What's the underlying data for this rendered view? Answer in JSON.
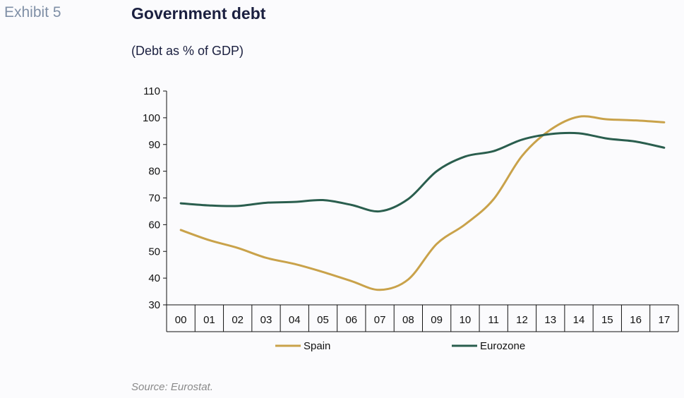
{
  "exhibit_label": "Exhibit 5",
  "title": "Government debt",
  "subtitle": "(Debt as % of GDP)",
  "source": "Source: Eurostat.",
  "chart_data": {
    "type": "line",
    "categories": [
      "00",
      "01",
      "02",
      "03",
      "04",
      "05",
      "06",
      "07",
      "08",
      "09",
      "10",
      "11",
      "12",
      "13",
      "14",
      "15",
      "16",
      "17"
    ],
    "ylim": [
      30,
      110
    ],
    "yticks": [
      30,
      40,
      50,
      60,
      70,
      80,
      90,
      100,
      110
    ],
    "grid": false,
    "legend_position": "bottom",
    "series": [
      {
        "name": "Spain",
        "color": "#c9a24a",
        "values": [
          58.0,
          54.2,
          51.3,
          47.6,
          45.3,
          42.3,
          38.9,
          35.6,
          39.5,
          52.8,
          60.1,
          69.5,
          85.7,
          95.5,
          100.4,
          99.4,
          99.0,
          98.3
        ]
      },
      {
        "name": "Eurozone",
        "color": "#2a5e4e",
        "values": [
          68.0,
          67.2,
          67.0,
          68.2,
          68.5,
          69.2,
          67.4,
          65.0,
          69.6,
          80.0,
          85.5,
          87.5,
          91.8,
          93.9,
          94.2,
          92.2,
          91.1,
          88.8
        ]
      }
    ]
  }
}
